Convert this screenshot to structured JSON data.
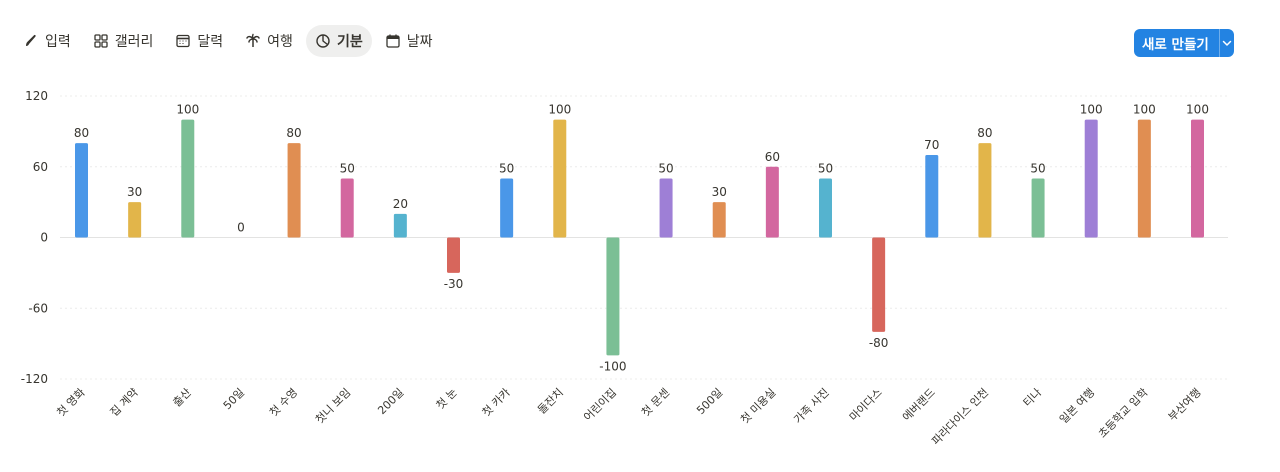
{
  "tabs": [
    {
      "label": "입력",
      "icon": "pen-icon",
      "active": false
    },
    {
      "label": "갤러리",
      "icon": "gallery-icon",
      "active": false
    },
    {
      "label": "달력",
      "icon": "calendar-icon",
      "active": false
    },
    {
      "label": "여행",
      "icon": "palm-tree-icon",
      "active": false
    },
    {
      "label": "기분",
      "icon": "pie-chart-icon",
      "active": true
    },
    {
      "label": "날짜",
      "icon": "calendar-date-icon",
      "active": false
    }
  ],
  "toolbar": {
    "new_label": "새로 만들기",
    "accent": "#2383e2"
  },
  "chart_data": {
    "type": "bar",
    "categories": [
      "첫 영화",
      "집 계약",
      "출산",
      "50일",
      "첫 수영",
      "첫니 보임",
      "200일",
      "첫 눈",
      "첫 카카",
      "돌잔치",
      "어린이집",
      "첫 문센",
      "500일",
      "첫 미용실",
      "가족 사진",
      "마이다스",
      "에버랜드",
      "파라다이스 인천",
      "티나",
      "일본 여행",
      "초등학교 입학",
      "부산여행"
    ],
    "values": [
      80,
      30,
      100,
      0,
      80,
      50,
      20,
      -30,
      50,
      100,
      -100,
      50,
      30,
      60,
      50,
      -80,
      70,
      80,
      50,
      100,
      100,
      100
    ],
    "colors": [
      "#4a97e8",
      "#e2b54a",
      "#7bbf95",
      "#c7c7c7",
      "#e08e52",
      "#d3679f",
      "#55b3cf",
      "#d7665c",
      "#4a97e8",
      "#e2b54a",
      "#7bbf95",
      "#9e7fd6",
      "#e08e52",
      "#d3679f",
      "#55b3cf",
      "#d7665c",
      "#4a97e8",
      "#e2b54a",
      "#7bbf95",
      "#9e7fd6",
      "#e08e52",
      "#d3679f"
    ],
    "yticks": [
      120,
      60,
      0,
      -60,
      -120
    ],
    "ylim": [
      -120,
      120
    ],
    "grid": true
  }
}
